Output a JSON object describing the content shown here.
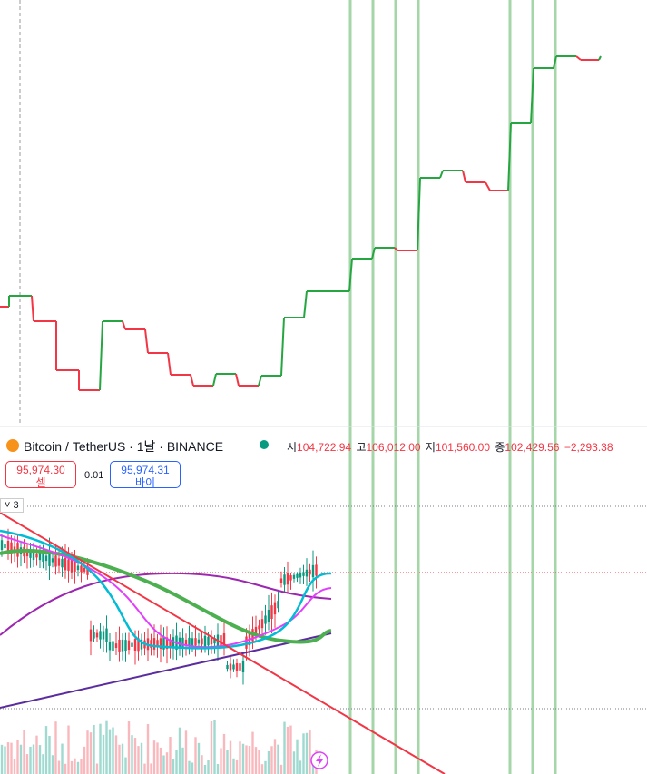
{
  "header": {
    "symbol": "Bitcoin",
    "separator": "/",
    "pair": "TetherUS · 1날 · BINANCE",
    "ohlc": [
      {
        "label": "시",
        "value": "104,722.94"
      },
      {
        "label": "고",
        "value": "106,012.00"
      },
      {
        "label": "저",
        "value": "101,560.00"
      },
      {
        "label": "종",
        "value": "102,429.56"
      }
    ],
    "change": "−2,293.38"
  },
  "trade": {
    "sell_price": "95,974.30",
    "sell_label": "셀",
    "quantity": "0.01",
    "buy_price": "95,974.31",
    "buy_label": "바이"
  },
  "indicator_count": "3"
}
